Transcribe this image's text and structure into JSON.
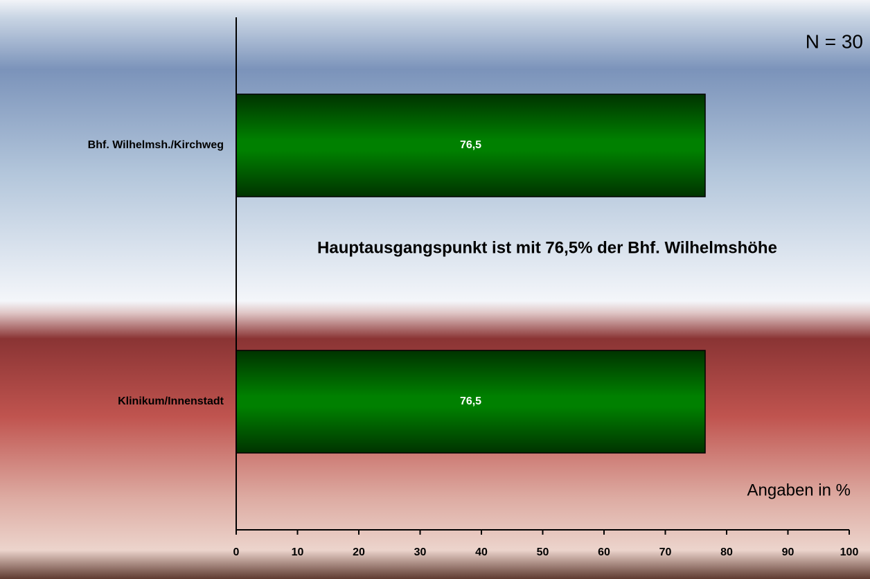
{
  "chart_data": {
    "type": "bar",
    "orientation": "horizontal",
    "categories": [
      "Bhf. Wilhelmsh./Kirchweg",
      "Klinikum/Innenstadt"
    ],
    "values": [
      76.5,
      76.5
    ],
    "value_labels": [
      "76,5",
      "76,5"
    ],
    "color": "#008000",
    "xlim": [
      0,
      100
    ],
    "xticks": [
      0,
      10,
      20,
      30,
      40,
      50,
      60,
      70,
      80,
      90,
      100
    ],
    "annotations": [
      "N = 30",
      "Hauptausgangspunkt ist mit 76,5% der Bhf. Wilhelmshöhe",
      "Angaben in %"
    ]
  }
}
